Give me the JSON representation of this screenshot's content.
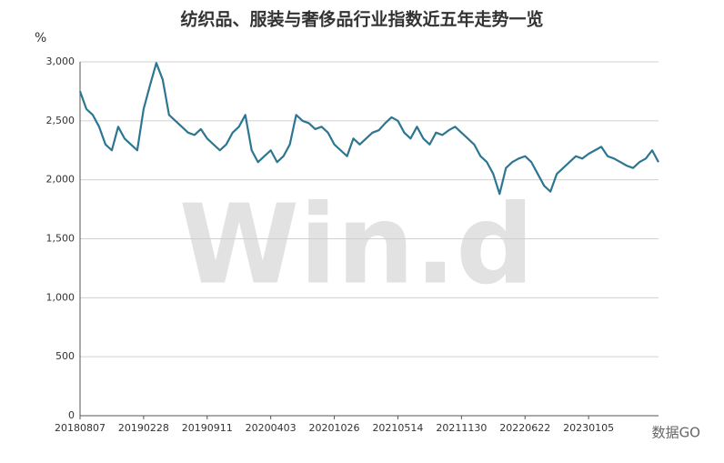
{
  "chart_data": {
    "type": "line",
    "title": "纺织品、服装与奢侈品行业指数近五年走势一览",
    "y_unit": "%",
    "watermark": "Win.d",
    "source": "数据GO",
    "color": "#2c7691",
    "grid": true,
    "categories": [
      "20180807",
      null,
      null,
      null,
      null,
      null,
      null,
      null,
      null,
      null,
      "20190228",
      null,
      null,
      null,
      null,
      null,
      null,
      null,
      null,
      null,
      "20190911",
      null,
      null,
      null,
      null,
      null,
      null,
      null,
      null,
      null,
      "20200403",
      null,
      null,
      null,
      null,
      null,
      null,
      null,
      null,
      null,
      "20201026",
      null,
      null,
      null,
      null,
      null,
      null,
      null,
      null,
      null,
      "20210514",
      null,
      null,
      null,
      null,
      null,
      null,
      null,
      null,
      null,
      "20211130",
      null,
      null,
      null,
      null,
      null,
      null,
      null,
      null,
      null,
      "20220622",
      null,
      null,
      null,
      null,
      null,
      null,
      null,
      null,
      null,
      "20230105",
      null,
      null,
      null,
      null,
      null,
      null,
      null,
      null,
      null,
      null,
      null
    ],
    "values": [
      2750,
      2600,
      2550,
      2450,
      2300,
      2250,
      2450,
      2350,
      2300,
      2250,
      2600,
      2800,
      2990,
      2850,
      2550,
      2500,
      2450,
      2400,
      2380,
      2430,
      2350,
      2300,
      2250,
      2300,
      2400,
      2450,
      2550,
      2250,
      2150,
      2200,
      2250,
      2150,
      2200,
      2300,
      2550,
      2500,
      2480,
      2430,
      2450,
      2400,
      2300,
      2250,
      2200,
      2350,
      2300,
      2350,
      2400,
      2420,
      2480,
      2530,
      2500,
      2400,
      2350,
      2450,
      2350,
      2300,
      2400,
      2380,
      2420,
      2450,
      2400,
      2350,
      2300,
      2200,
      2150,
      2050,
      1880,
      2100,
      2150,
      2180,
      2200,
      2150,
      2050,
      1950,
      1900,
      2050,
      2100,
      2150,
      2200,
      2180,
      2220,
      2250,
      2280,
      2200,
      2180,
      2150,
      2120,
      2100,
      2150,
      2180,
      2250,
      2150
    ],
    "ylim": [
      0,
      3000
    ],
    "yticks": [
      0,
      500,
      {
        "value": 1000,
        "label": "1,000"
      },
      {
        "value": 1500,
        "label": "1,500"
      },
      {
        "value": 2000,
        "label": "2,000"
      },
      {
        "value": 2500,
        "label": "2,500"
      },
      {
        "value": 3000,
        "label": "3,000"
      }
    ]
  }
}
